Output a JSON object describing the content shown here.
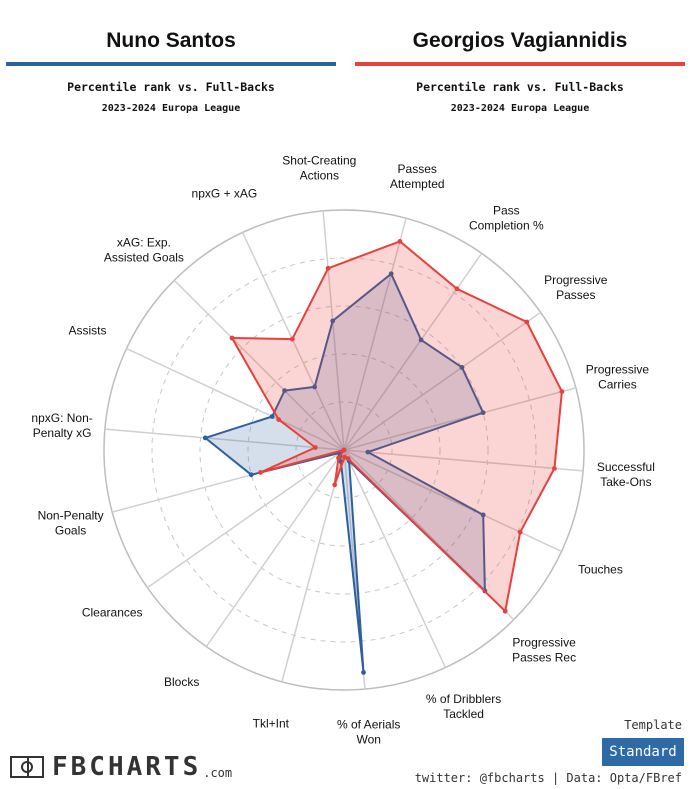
{
  "players": [
    {
      "name": "Nuno Santos",
      "color": "#2e5f9e"
    },
    {
      "name": "Georgios Vagiannidis",
      "color": "#e8403a"
    }
  ],
  "subtitle": "Percentile rank vs. Full-Backs",
  "competition": "2023-2024 Europa League",
  "template": {
    "label": "Template",
    "value": "Standard"
  },
  "branding": {
    "logo": "FBCHARTS",
    "logo_suffix": ".com",
    "credit": "twitter: @fbcharts | Data: Opta/FBref"
  },
  "chart_data": {
    "type": "radar",
    "range": [
      0,
      100
    ],
    "grid_rings": [
      20,
      40,
      60,
      80,
      100
    ],
    "axes": [
      {
        "label": [
          "Passes",
          "Attempted"
        ]
      },
      {
        "label": [
          "Pass",
          "Completion %"
        ]
      },
      {
        "label": [
          "Progressive",
          "Passes"
        ]
      },
      {
        "label": [
          "Progressive",
          "Carries"
        ]
      },
      {
        "label": [
          "Successful",
          "Take-Ons"
        ]
      },
      {
        "label": [
          "Touches"
        ]
      },
      {
        "label": [
          "Progressive",
          "Passes Rec"
        ]
      },
      {
        "label": [
          "% of Dribblers",
          "Tackled"
        ]
      },
      {
        "label": [
          "% of Aerials",
          "Won"
        ]
      },
      {
        "label": [
          "Tkl+Int"
        ]
      },
      {
        "label": [
          "Blocks"
        ]
      },
      {
        "label": [
          "Clearances"
        ]
      },
      {
        "label": [
          "Non-Penalty",
          "Goals"
        ]
      },
      {
        "label": [
          "npxG: Non-",
          "Penalty xG"
        ]
      },
      {
        "label": [
          "Assists"
        ]
      },
      {
        "label": [
          "xAG: Exp.",
          "Assisted Goals"
        ]
      },
      {
        "label": [
          "npxG + xAG"
        ]
      },
      {
        "label": [
          "Shot-Creating",
          "Actions"
        ]
      }
    ],
    "series": [
      {
        "name": "Nuno Santos",
        "color": "#2e5f9e",
        "values": [
          76,
          56,
          60,
          60,
          10,
          64,
          83,
          5,
          93,
          5,
          3,
          2,
          40,
          58,
          33,
          35,
          29,
          54
        ]
      },
      {
        "name": "Georgios Vagiannidis",
        "color": "#e8403a",
        "values": [
          90,
          82,
          93,
          94,
          88,
          81,
          95,
          4,
          3,
          15,
          4,
          0,
          36,
          12,
          30,
          66,
          51,
          76
        ]
      }
    ]
  }
}
